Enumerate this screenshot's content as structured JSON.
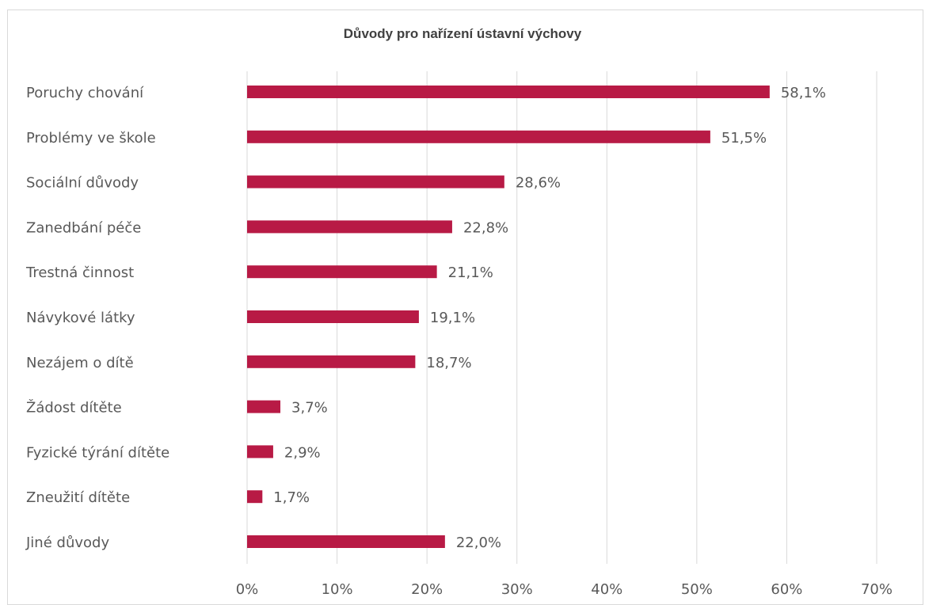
{
  "chart_data": {
    "type": "bar",
    "orientation": "horizontal",
    "title": "Důvody pro nařízení ústavní výchovy",
    "categories": [
      "Poruchy chování",
      "Problémy ve škole",
      "Sociální důvody",
      "Zanedbání péče",
      "Trestná činnost",
      "Návykové látky",
      "Nezájem o dítě",
      "Žádost dítěte",
      "Fyzické týrání dítěte",
      "Zneužití dítěte",
      "Jiné důvody"
    ],
    "values": [
      58.1,
      51.5,
      28.6,
      22.8,
      21.1,
      19.1,
      18.7,
      3.7,
      2.9,
      1.7,
      22.0
    ],
    "value_labels": [
      "58,1%",
      "51,5%",
      "28,6%",
      "22,8%",
      "21,1%",
      "19,1%",
      "18,7%",
      "3,7%",
      "2,9%",
      "1,7%",
      "22,0%"
    ],
    "xlim": [
      0,
      70
    ],
    "x_ticks": [
      "0%",
      "10%",
      "20%",
      "30%",
      "40%",
      "50%",
      "60%",
      "70%"
    ],
    "grid": "vertical",
    "bar_color": "#b81a45",
    "grid_color": "#d9d9d9"
  }
}
